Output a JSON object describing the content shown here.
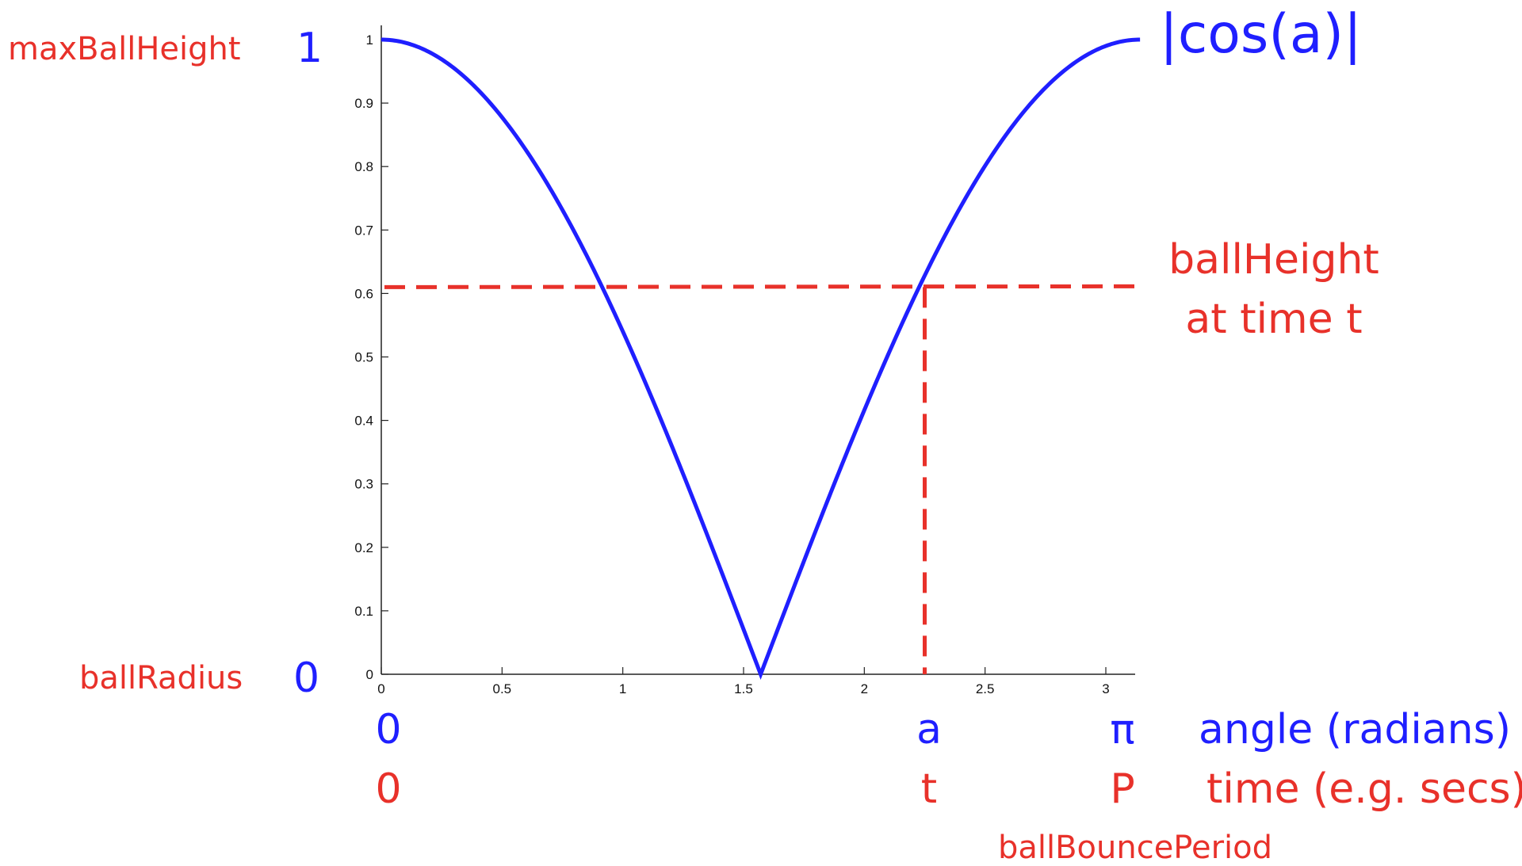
{
  "chart_data": {
    "type": "line",
    "function_label": "|cos(a)|",
    "xlim": [
      0,
      3.14159
    ],
    "ylim": [
      0,
      1
    ],
    "x_ticks": [
      0,
      0.5,
      1,
      1.5,
      2,
      2.5,
      3
    ],
    "x_tick_labels": [
      "0",
      "0.5",
      "1",
      "1.5",
      "2",
      "2.5",
      "3"
    ],
    "y_ticks": [
      0,
      0.1,
      0.2,
      0.3,
      0.4,
      0.5,
      0.6,
      0.7,
      0.8,
      0.9,
      1
    ],
    "y_tick_labels": [
      "0",
      "0.1",
      "0.2",
      "0.3",
      "0.4",
      "0.5",
      "0.6",
      "0.7",
      "0.8",
      "0.9",
      "1"
    ],
    "series": [
      {
        "function": "abs(cos(x))",
        "color": "#1f1fff"
      }
    ],
    "reference_point": {
      "x": 2.25,
      "y": 0.61,
      "color": "#e8312a"
    },
    "annotations": {
      "y_max_blue": "1",
      "y_max_red": "maxBallHeight",
      "y_min_blue": "0",
      "y_min_red": "ballRadius",
      "x_start_blue": "0",
      "x_start_red": "0",
      "x_point_blue": "a",
      "x_point_red": "t",
      "x_end_blue": "π",
      "x_end_red": "P",
      "x_axis_blue": "angle (radians)",
      "x_axis_red": "time (e.g. secs)",
      "period_label": "ballBouncePeriod",
      "height_label_line1": "ballHeight",
      "height_label_line2": "at time t"
    }
  }
}
